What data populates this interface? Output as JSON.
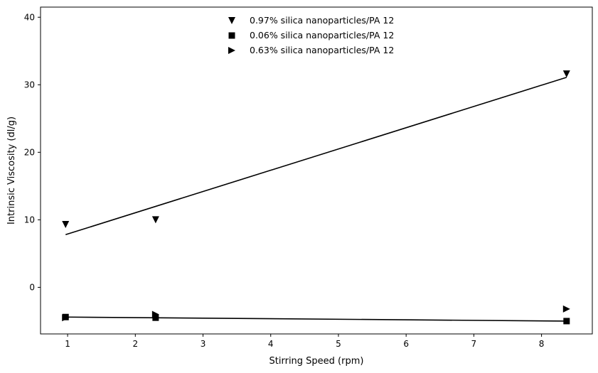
{
  "chart_data": {
    "type": "scatter",
    "title": "",
    "xlabel": "Stirring Speed (rpm)",
    "ylabel": "Intrinsic Viscosity (dl/g)",
    "xlim": [
      0.6,
      8.75
    ],
    "ylim": [
      -6.9,
      41.5
    ],
    "xticks": [
      1,
      2,
      3,
      4,
      5,
      6,
      7,
      8
    ],
    "yticks": [
      0,
      10,
      20,
      30,
      40
    ],
    "grid": false,
    "legend_position": "top-center",
    "series": [
      {
        "name": "0.97% silica nanoparticles/PA 12",
        "marker": "triangle-down",
        "color": "#000000",
        "x": [
          0.97,
          2.3,
          8.37
        ],
        "y": [
          9.3,
          10.0,
          31.6
        ]
      },
      {
        "name": "0.06% silica nanoparticles/PA 12",
        "marker": "square",
        "color": "#000000",
        "x": [
          0.97,
          2.3,
          8.37
        ],
        "y": [
          -4.4,
          -4.5,
          -5.0
        ]
      },
      {
        "name": "0.63% silica nanoparticles/PA 12",
        "marker": "triangle-right",
        "color": "#000000",
        "x": [
          0.97,
          2.3,
          8.37
        ],
        "y": [
          -4.5,
          -4.0,
          -3.2
        ]
      }
    ],
    "fit_lines": [
      {
        "series": "0.97% silica nanoparticles/PA 12",
        "x": [
          0.97,
          8.37
        ],
        "y": [
          7.8,
          31.1
        ]
      },
      {
        "series": "0.06% silica nanoparticles/PA 12",
        "x": [
          0.97,
          8.37
        ],
        "y": [
          -4.4,
          -5.0
        ]
      }
    ]
  }
}
